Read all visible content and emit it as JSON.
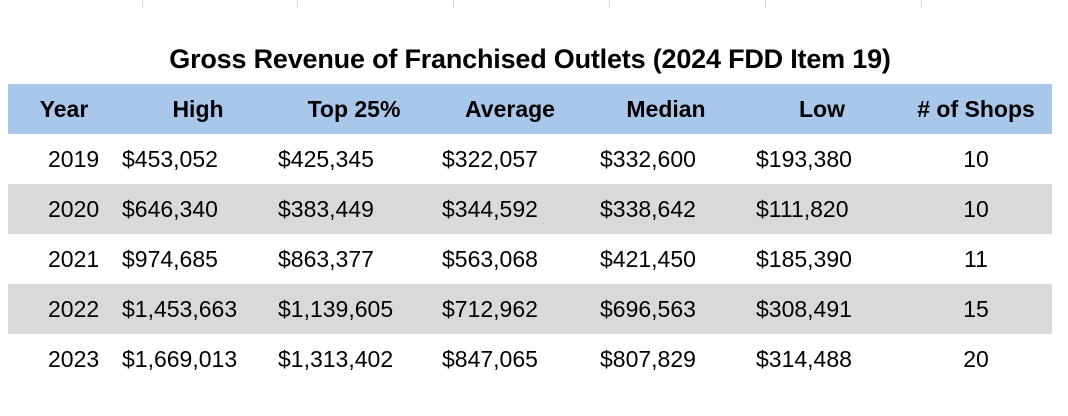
{
  "title": "Gross Revenue of Franchised Outlets (2024 FDD Item 19)",
  "table": {
    "headers": [
      "Year",
      "High",
      "Top 25%",
      "Average",
      "Median",
      "Low",
      "# of Shops"
    ],
    "rows": [
      [
        "2019",
        "$453,052",
        "$425,345",
        "$322,057",
        "$332,600",
        "$193,380",
        "10"
      ],
      [
        "2020",
        "$646,340",
        "$383,449",
        "$344,592",
        "$338,642",
        "$111,820",
        "10"
      ],
      [
        "2021",
        "$974,685",
        "$863,377",
        "$563,068",
        "$421,450",
        "$185,390",
        "11"
      ],
      [
        "2022",
        "$1,453,663",
        "$1,139,605",
        "$712,962",
        "$696,563",
        "$308,491",
        "15"
      ],
      [
        "2023",
        "$1,669,013",
        "$1,313,402",
        "$847,065",
        "$807,829",
        "$314,488",
        "20"
      ]
    ]
  },
  "colors": {
    "header_fill": "#a9c7ea",
    "band_fill": "#d9d9d9",
    "background": "#ffffff"
  }
}
